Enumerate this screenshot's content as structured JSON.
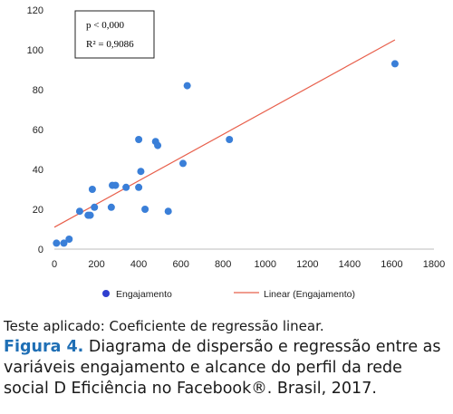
{
  "chart_data": {
    "type": "scatter",
    "xlim": [
      0,
      1800
    ],
    "ylim": [
      0,
      120
    ],
    "x_ticks": [
      "0",
      "200",
      "400",
      "600",
      "800",
      "1000",
      "1200",
      "1400",
      "1600",
      "1800"
    ],
    "y_ticks": [
      "0",
      "20",
      "40",
      "60",
      "80",
      "100",
      "120"
    ],
    "grid": false,
    "series": [
      {
        "name": "Engajamento",
        "type": "scatter",
        "color": "#3a7fd8",
        "points": [
          [
            10,
            3
          ],
          [
            45,
            3
          ],
          [
            70,
            5
          ],
          [
            120,
            19
          ],
          [
            160,
            17
          ],
          [
            170,
            17
          ],
          [
            180,
            30
          ],
          [
            190,
            21
          ],
          [
            270,
            21
          ],
          [
            275,
            32
          ],
          [
            290,
            32
          ],
          [
            340,
            31
          ],
          [
            400,
            31
          ],
          [
            400,
            55
          ],
          [
            410,
            39
          ],
          [
            430,
            20
          ],
          [
            480,
            54
          ],
          [
            490,
            52
          ],
          [
            540,
            19
          ],
          [
            610,
            43
          ],
          [
            630,
            82
          ],
          [
            830,
            55
          ],
          [
            1615,
            93
          ]
        ]
      },
      {
        "name": "Linear (Engajamento)",
        "type": "line",
        "color": "#e8604c",
        "points": [
          [
            0,
            11
          ],
          [
            1615,
            105
          ]
        ]
      }
    ],
    "annotation": {
      "p_value": "p < 0,000",
      "r_squared": "R² = 0,9086"
    },
    "legend": {
      "position": "bottom",
      "entries": [
        "Engajamento",
        "Linear (Engajamento)"
      ]
    }
  },
  "caption": {
    "test_line": "Teste aplicado: Coeficiente de regressão linear.",
    "figure_label": "Figura 4.",
    "figure_text": " Diagrama de dispersão e regressão entre as variáveis engajamento e alcance do perfil da rede social D Eficiência no Facebook®. Brasil, 2017."
  }
}
